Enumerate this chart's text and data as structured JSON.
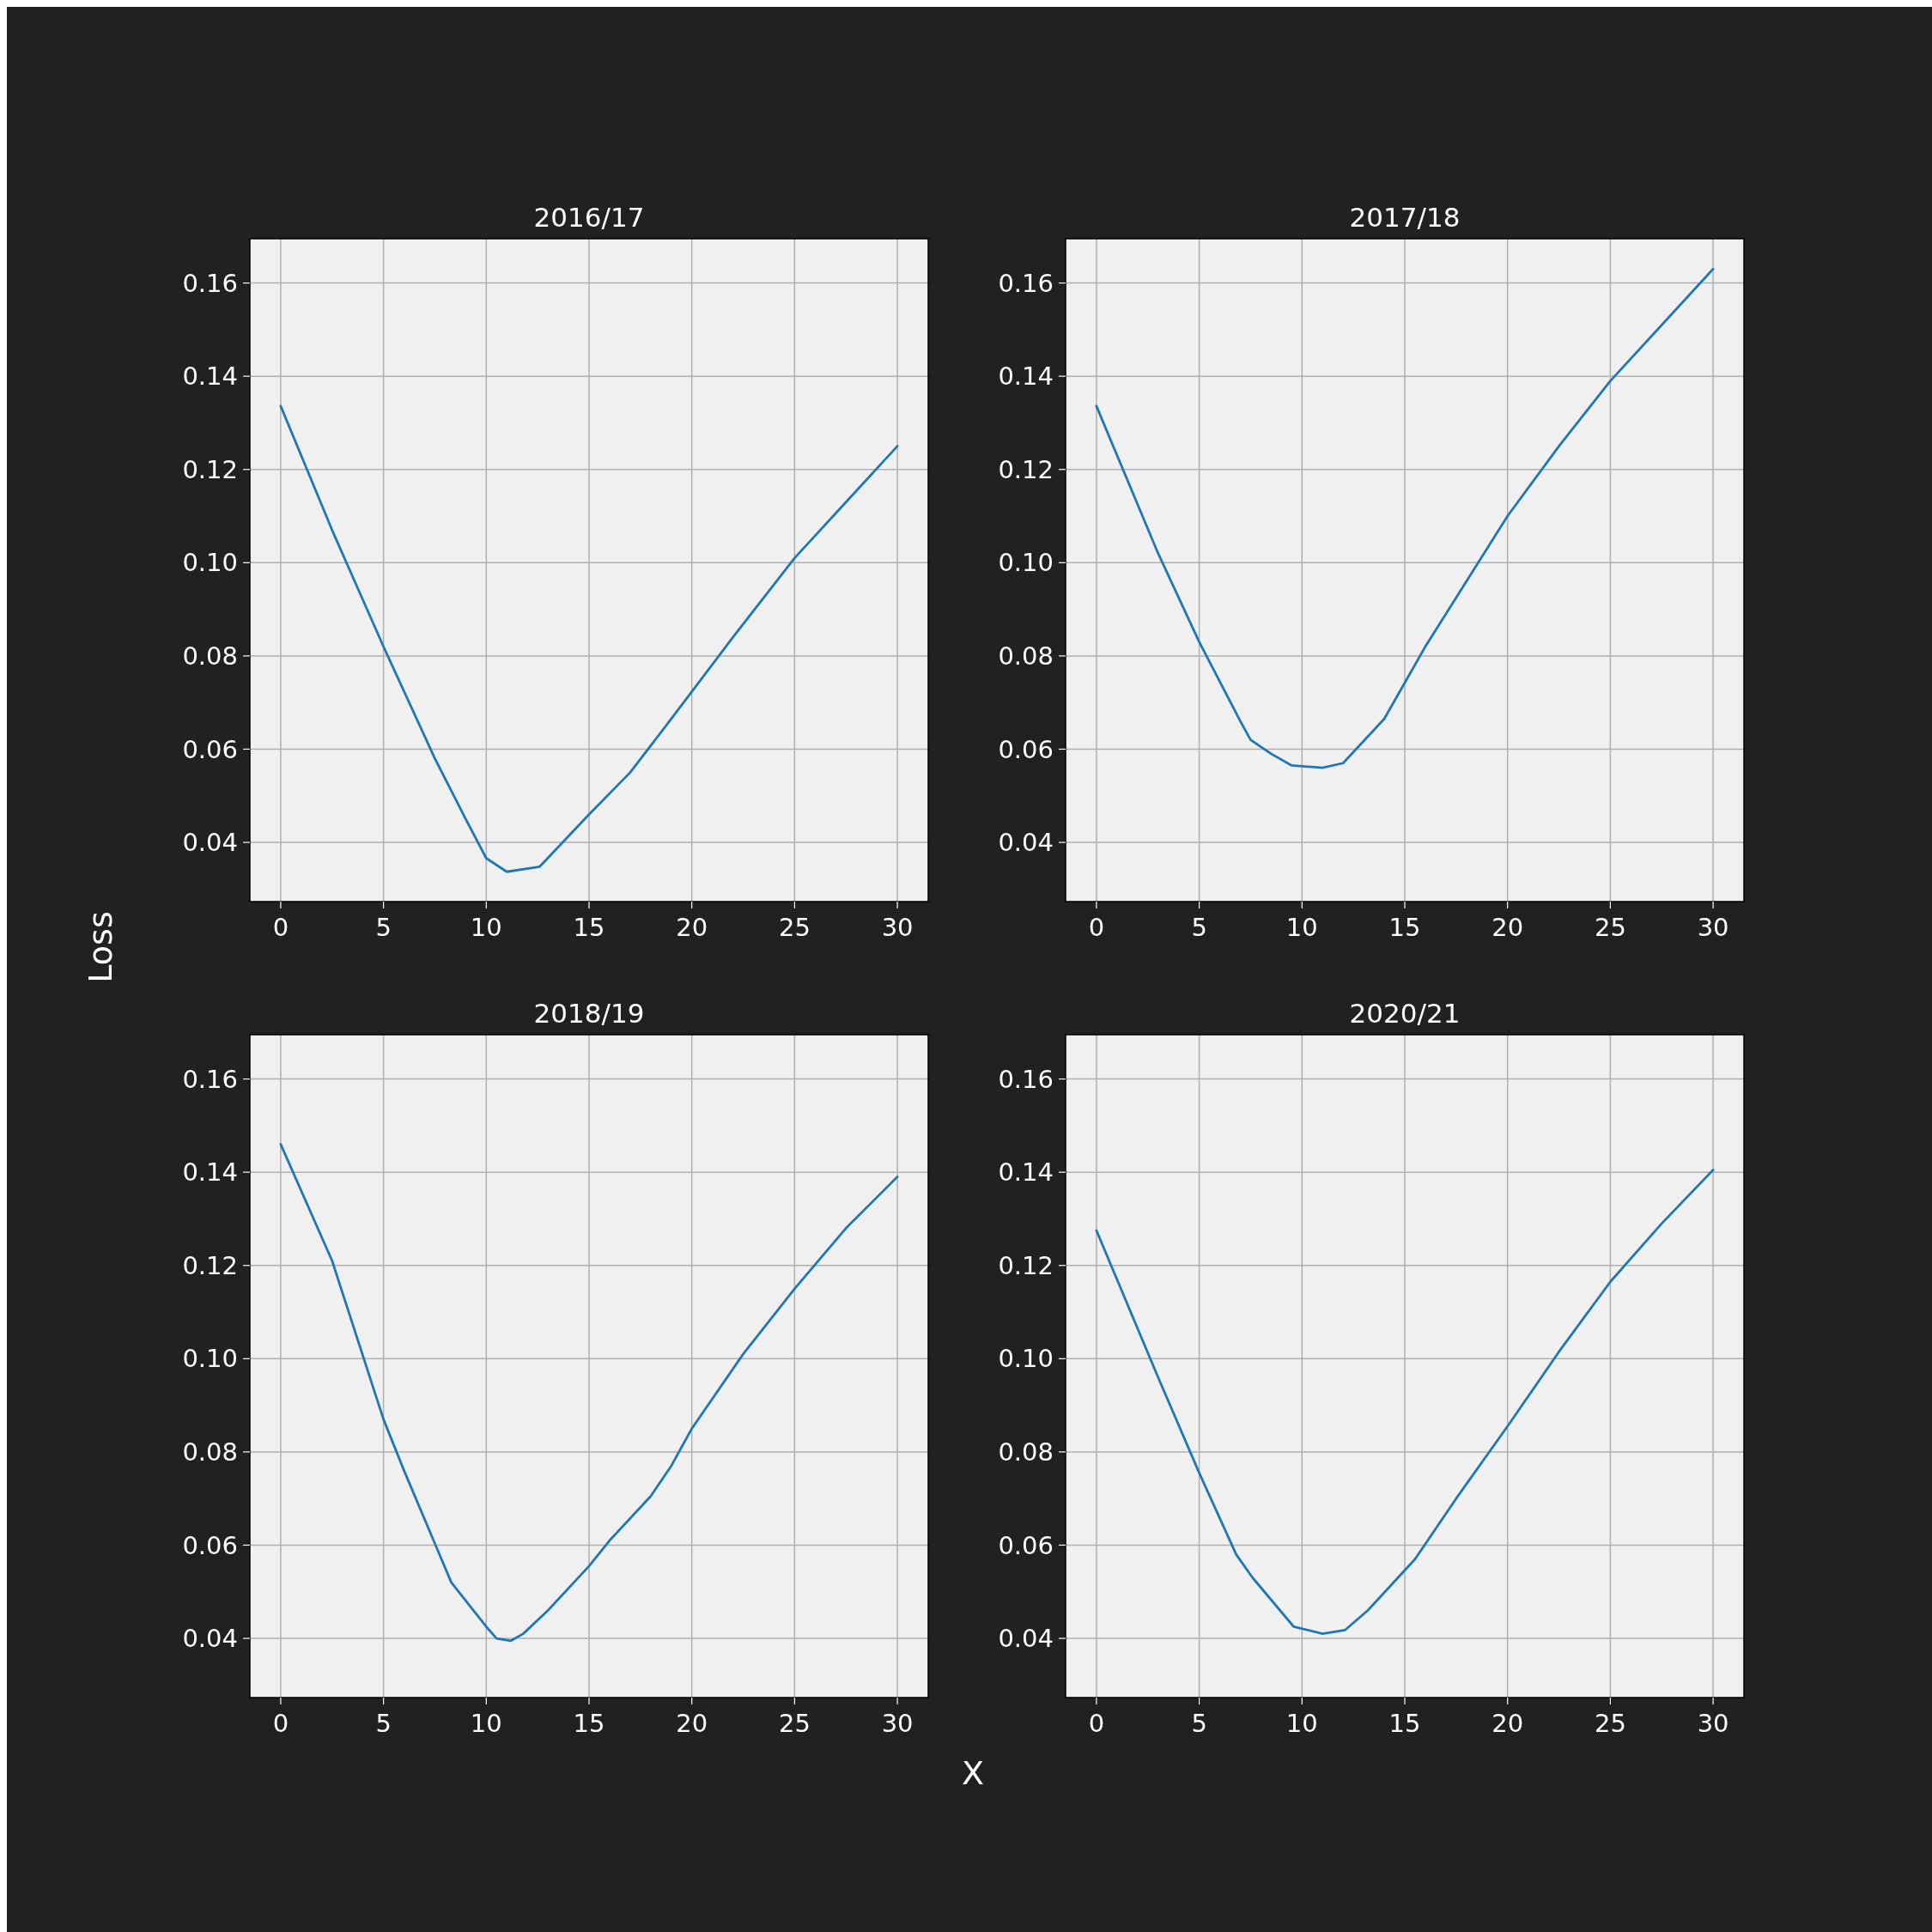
{
  "chart_data": [
    {
      "type": "line",
      "title": "2016/17",
      "xlabel": "X",
      "ylabel": "Loss",
      "color": "#1f77b4",
      "grid": true,
      "xlim": [
        -1.5,
        31.5
      ],
      "ylim": [
        0.0273,
        0.1695
      ],
      "xticks": [
        0,
        5,
        10,
        15,
        20,
        25,
        30
      ],
      "yticks": [
        {
          "value": 0.04,
          "label": "0.04"
        },
        {
          "value": 0.06,
          "label": "0.06"
        },
        {
          "value": 0.08,
          "label": "0.08"
        },
        {
          "value": 0.1,
          "label": "0.10"
        },
        {
          "value": 0.12,
          "label": "0.12"
        },
        {
          "value": 0.14,
          "label": "0.14"
        },
        {
          "value": 0.16,
          "label": "0.16"
        }
      ],
      "x": [
        0,
        2.5,
        5,
        7.5,
        9,
        10,
        11,
        12.6,
        13.5,
        15,
        17,
        19,
        22,
        25,
        27.5,
        30
      ],
      "values": [
        0.1336,
        0.107,
        0.082,
        0.058,
        0.045,
        0.0366,
        0.0337,
        0.0348,
        0.039,
        0.046,
        0.055,
        0.0665,
        0.084,
        0.101,
        0.113,
        0.125
      ]
    },
    {
      "type": "line",
      "title": "2017/18",
      "color": "#1f77b4",
      "grid": true,
      "xlim": [
        -1.5,
        31.5
      ],
      "ylim": [
        0.0273,
        0.1695
      ],
      "xticks": [
        0,
        5,
        10,
        15,
        20,
        25,
        30
      ],
      "yticks": [
        {
          "value": 0.04,
          "label": "0.04"
        },
        {
          "value": 0.06,
          "label": "0.06"
        },
        {
          "value": 0.08,
          "label": "0.08"
        },
        {
          "value": 0.1,
          "label": "0.10"
        },
        {
          "value": 0.12,
          "label": "0.12"
        },
        {
          "value": 0.14,
          "label": "0.14"
        },
        {
          "value": 0.16,
          "label": "0.16"
        }
      ],
      "x": [
        0,
        3,
        5,
        7,
        7.5,
        8.5,
        9.5,
        11,
        12,
        14,
        16,
        18,
        20,
        22.5,
        25,
        27.5,
        30
      ],
      "values": [
        0.1336,
        0.102,
        0.083,
        0.066,
        0.062,
        0.059,
        0.0565,
        0.056,
        0.057,
        0.0665,
        0.082,
        0.096,
        0.11,
        0.125,
        0.139,
        0.151,
        0.163
      ]
    },
    {
      "type": "line",
      "title": "2018/19",
      "color": "#1f77b4",
      "grid": true,
      "xlim": [
        -1.5,
        31.5
      ],
      "ylim": [
        0.0273,
        0.1695
      ],
      "xticks": [
        0,
        5,
        10,
        15,
        20,
        25,
        30
      ],
      "yticks": [
        {
          "value": 0.04,
          "label": "0.04"
        },
        {
          "value": 0.06,
          "label": "0.06"
        },
        {
          "value": 0.08,
          "label": "0.08"
        },
        {
          "value": 0.1,
          "label": "0.10"
        },
        {
          "value": 0.12,
          "label": "0.12"
        },
        {
          "value": 0.14,
          "label": "0.14"
        },
        {
          "value": 0.16,
          "label": "0.16"
        }
      ],
      "x": [
        0,
        2.5,
        5,
        6,
        8.3,
        10,
        10.5,
        11.2,
        11.8,
        13,
        15,
        16,
        18,
        19,
        20,
        22.5,
        25,
        27.5,
        30
      ],
      "values": [
        0.146,
        0.121,
        0.087,
        0.076,
        0.052,
        0.0425,
        0.04,
        0.0395,
        0.041,
        0.046,
        0.0555,
        0.061,
        0.0705,
        0.077,
        0.085,
        0.101,
        0.115,
        0.128,
        0.139
      ]
    },
    {
      "type": "line",
      "title": "2020/21",
      "color": "#1f77b4",
      "grid": true,
      "xlim": [
        -1.5,
        31.5
      ],
      "ylim": [
        0.0273,
        0.1695
      ],
      "xticks": [
        0,
        5,
        10,
        15,
        20,
        25,
        30
      ],
      "yticks": [
        {
          "value": 0.04,
          "label": "0.04"
        },
        {
          "value": 0.06,
          "label": "0.06"
        },
        {
          "value": 0.08,
          "label": "0.08"
        },
        {
          "value": 0.1,
          "label": "0.10"
        },
        {
          "value": 0.12,
          "label": "0.12"
        },
        {
          "value": 0.14,
          "label": "0.14"
        },
        {
          "value": 0.16,
          "label": "0.16"
        }
      ],
      "x": [
        0,
        3,
        5,
        6.8,
        7.6,
        9.6,
        11,
        12.1,
        13.2,
        15.5,
        17.5,
        20,
        22.5,
        25,
        27.5,
        30
      ],
      "values": [
        0.1275,
        0.096,
        0.0755,
        0.058,
        0.053,
        0.0425,
        0.041,
        0.0418,
        0.046,
        0.057,
        0.07,
        0.0855,
        0.1015,
        0.1165,
        0.129,
        0.1405
      ]
    }
  ]
}
